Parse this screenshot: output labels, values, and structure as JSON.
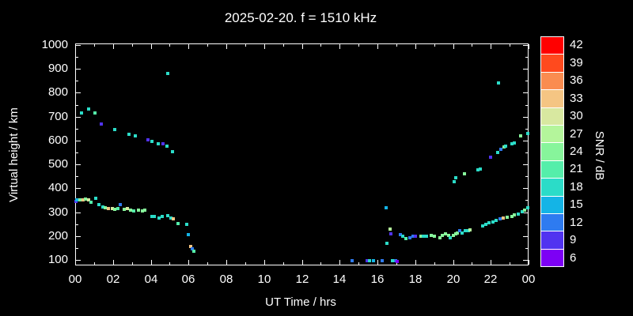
{
  "title": "2025-02-20. f = 1510 kHz",
  "axes": {
    "x_label": "UT Time / hrs",
    "y_label": "Virtual height / km",
    "x_tick_hours": [
      0,
      2,
      4,
      6,
      8,
      10,
      12,
      14,
      16,
      18,
      20,
      22,
      24
    ],
    "x_tick_labels": [
      "00",
      "02",
      "04",
      "06",
      "08",
      "10",
      "12",
      "14",
      "16",
      "18",
      "20",
      "22",
      "00"
    ],
    "y_tick_values": [
      100,
      200,
      300,
      400,
      500,
      600,
      700,
      800,
      900,
      1000
    ]
  },
  "colorbar": {
    "label": "SNR / dB",
    "levels": [
      {
        "value": 42,
        "color": "#ff0000"
      },
      {
        "value": 39,
        "color": "#ff4a1e"
      },
      {
        "value": 36,
        "color": "#fa8c50"
      },
      {
        "value": 33,
        "color": "#f5c583"
      },
      {
        "value": 30,
        "color": "#d8e8a0"
      },
      {
        "value": 27,
        "color": "#b4f59b"
      },
      {
        "value": 24,
        "color": "#87f59b"
      },
      {
        "value": 21,
        "color": "#55eeaa"
      },
      {
        "value": 18,
        "color": "#2bdcc8"
      },
      {
        "value": 15,
        "color": "#14b4e6"
      },
      {
        "value": 12,
        "color": "#2e7bf0"
      },
      {
        "value": 9,
        "color": "#5133f0"
      },
      {
        "value": 6,
        "color": "#7d00f5"
      }
    ]
  },
  "chart_data": {
    "type": "scatter",
    "title": "2025-02-20. f = 1510 kHz",
    "xlabel": "UT Time / hrs",
    "ylabel": "Virtual height / km",
    "colorbar_label": "SNR / dB",
    "xlim": [
      0,
      24
    ],
    "ylim": [
      100,
      1000
    ],
    "snr_levels": [
      6,
      9,
      12,
      15,
      18,
      21,
      24,
      27,
      30,
      33,
      36,
      39,
      42
    ],
    "marker": "square",
    "points_format": [
      "ut_hour",
      "height_km",
      "snr_db"
    ],
    "points": [
      [
        0.35,
        715,
        18
      ],
      [
        0.7,
        732,
        18
      ],
      [
        1.05,
        715,
        21
      ],
      [
        1.4,
        668,
        9
      ],
      [
        2.1,
        645,
        18
      ],
      [
        2.85,
        627,
        18
      ],
      [
        3.2,
        620,
        18
      ],
      [
        3.85,
        603,
        9
      ],
      [
        4.05,
        597,
        18
      ],
      [
        4.4,
        585,
        18
      ],
      [
        4.65,
        588,
        9
      ],
      [
        4.85,
        578,
        18
      ],
      [
        5.15,
        553,
        18
      ],
      [
        4.9,
        880,
        18
      ],
      [
        0.05,
        345,
        9
      ],
      [
        0.1,
        350,
        15
      ],
      [
        0.25,
        352,
        24
      ],
      [
        0.4,
        350,
        33
      ],
      [
        0.55,
        355,
        24
      ],
      [
        0.7,
        350,
        30
      ],
      [
        0.85,
        343,
        21
      ],
      [
        1.1,
        357,
        18
      ],
      [
        1.25,
        333,
        18
      ],
      [
        1.45,
        323,
        18
      ],
      [
        1.6,
        319,
        24
      ],
      [
        1.75,
        316,
        33
      ],
      [
        1.95,
        316,
        30
      ],
      [
        2.1,
        312,
        24
      ],
      [
        2.25,
        316,
        21
      ],
      [
        2.4,
        330,
        12
      ],
      [
        2.6,
        312,
        24
      ],
      [
        2.75,
        316,
        30
      ],
      [
        2.95,
        309,
        24
      ],
      [
        3.1,
        305,
        21
      ],
      [
        3.35,
        309,
        24
      ],
      [
        3.55,
        305,
        24
      ],
      [
        3.7,
        309,
        24
      ],
      [
        4.05,
        283,
        18
      ],
      [
        4.2,
        283,
        18
      ],
      [
        4.45,
        276,
        18
      ],
      [
        4.6,
        283,
        18
      ],
      [
        4.9,
        286,
        18
      ],
      [
        5.05,
        276,
        18
      ],
      [
        5.2,
        271,
        33
      ],
      [
        5.45,
        252,
        21
      ],
      [
        5.9,
        248,
        18
      ],
      [
        6.0,
        205,
        15
      ],
      [
        6.1,
        155,
        33
      ],
      [
        6.2,
        145,
        12
      ],
      [
        6.3,
        138,
        21
      ],
      [
        14.65,
        97,
        12
      ],
      [
        15.45,
        97,
        9
      ],
      [
        15.6,
        98,
        18
      ],
      [
        15.8,
        98,
        15
      ],
      [
        16.25,
        97,
        12
      ],
      [
        16.8,
        98,
        18
      ],
      [
        16.95,
        97,
        12
      ],
      [
        17.05,
        95,
        6
      ],
      [
        16.45,
        320,
        15
      ],
      [
        16.5,
        170,
        18
      ],
      [
        16.65,
        228,
        27
      ],
      [
        16.7,
        210,
        9
      ],
      [
        17.2,
        205,
        12
      ],
      [
        17.35,
        198,
        18
      ],
      [
        17.5,
        190,
        21
      ],
      [
        17.7,
        193,
        12
      ],
      [
        17.9,
        198,
        12
      ],
      [
        18.0,
        198,
        9
      ],
      [
        18.3,
        198,
        24
      ],
      [
        18.45,
        198,
        18
      ],
      [
        18.6,
        198,
        18
      ],
      [
        18.85,
        202,
        24
      ],
      [
        19.0,
        198,
        24
      ],
      [
        19.3,
        194,
        24
      ],
      [
        19.45,
        204,
        24
      ],
      [
        19.6,
        208,
        24
      ],
      [
        19.75,
        204,
        24
      ],
      [
        19.85,
        194,
        18
      ],
      [
        20.0,
        204,
        24
      ],
      [
        20.15,
        208,
        24
      ],
      [
        20.25,
        214,
        24
      ],
      [
        20.35,
        221,
        12
      ],
      [
        20.5,
        214,
        18
      ],
      [
        20.65,
        221,
        18
      ],
      [
        20.8,
        221,
        18
      ],
      [
        20.9,
        225,
        27
      ],
      [
        21.55,
        241,
        18
      ],
      [
        21.75,
        248,
        18
      ],
      [
        21.9,
        254,
        18
      ],
      [
        22.1,
        258,
        18
      ],
      [
        22.3,
        267,
        18
      ],
      [
        22.5,
        271,
        12
      ],
      [
        22.65,
        275,
        33
      ],
      [
        22.85,
        278,
        24
      ],
      [
        23.1,
        282,
        24
      ],
      [
        23.25,
        289,
        24
      ],
      [
        23.45,
        293,
        18
      ],
      [
        23.65,
        302,
        18
      ],
      [
        23.8,
        309,
        24
      ],
      [
        23.95,
        317,
        18
      ],
      [
        20.05,
        428,
        18
      ],
      [
        20.15,
        445,
        18
      ],
      [
        20.6,
        460,
        24
      ],
      [
        21.3,
        476,
        18
      ],
      [
        21.45,
        480,
        18
      ],
      [
        22.0,
        530,
        9
      ],
      [
        22.35,
        551,
        18
      ],
      [
        22.55,
        562,
        12
      ],
      [
        22.7,
        572,
        24
      ],
      [
        22.8,
        578,
        18
      ],
      [
        23.1,
        585,
        18
      ],
      [
        23.25,
        591,
        18
      ],
      [
        23.6,
        621,
        24
      ],
      [
        23.95,
        630,
        18
      ],
      [
        22.4,
        842,
        18
      ]
    ]
  }
}
